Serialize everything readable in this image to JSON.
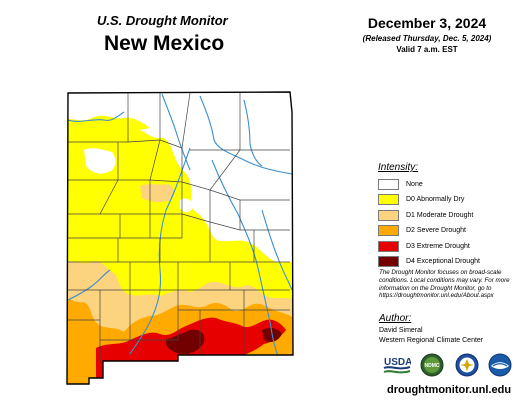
{
  "header": {
    "subtitle": "U.S. Drought Monitor",
    "state": "New Mexico",
    "date": "December 3, 2024",
    "released": "(Released Thursday, Dec. 5, 2024)",
    "valid": "Valid 7 a.m. EST"
  },
  "legend": {
    "title": "Intensity:",
    "items": [
      {
        "label": "None",
        "color": "#ffffff"
      },
      {
        "label": "D0 Abnormally Dry",
        "color": "#ffff00"
      },
      {
        "label": "D1 Moderate Drought",
        "color": "#fcd37f"
      },
      {
        "label": "D2 Severe Drought",
        "color": "#ffaa00"
      },
      {
        "label": "D3 Extreme Drought",
        "color": "#e60000"
      },
      {
        "label": "D4 Exceptional Drought",
        "color": "#730000"
      }
    ]
  },
  "note": "The Drought Monitor focuses on broad-scale conditions. Local conditions may vary. For more information on the Drought Monitor, go to https://droughtmonitor.unl.edu/About.aspx",
  "author": {
    "title": "Author:",
    "name": "David Simeral",
    "org": "Western Regional Climate Center"
  },
  "logos": [
    {
      "name": "usda-logo",
      "text": "USDA"
    },
    {
      "name": "ndmc-logo",
      "text": "NDMC"
    },
    {
      "name": "commerce-seal",
      "text": ""
    },
    {
      "name": "noaa-logo",
      "text": "NOAA"
    }
  ],
  "footer": {
    "url": "droughtmonitor.unl.edu"
  }
}
